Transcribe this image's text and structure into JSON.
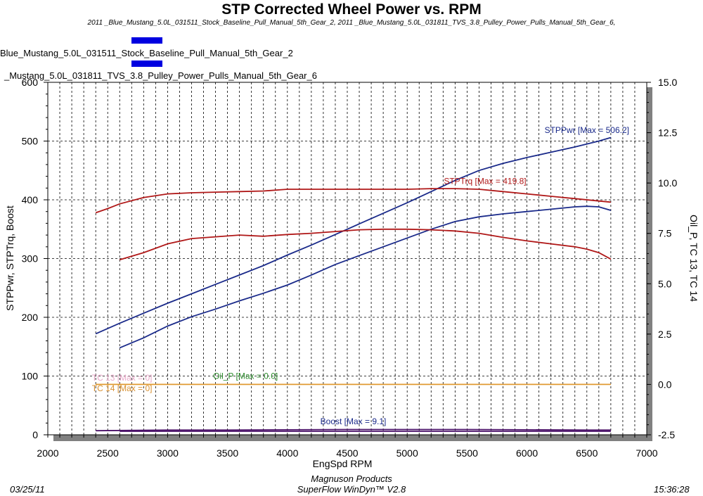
{
  "header": {
    "title": "STP Corrected Wheel Power vs. RPM",
    "subtitle": "2011 _Blue_Mustang_5.0L_031511_Stock_Baseline_Pull_Manual_5th_Gear_2, 2011 _Blue_Mustang_5.0L_031811_TVS_3.8_Pulley_Power_Pulls_Manual_5th_Gear_6,"
  },
  "legend": {
    "run1": "Blue_Mustang_5.0L_031511_Stock_Baseline_Pull_Manual_5th_Gear_2",
    "run2": "_Mustang_5.0L_031811_TVS_3.8_Pulley_Power_Pulls_Manual_5th_Gear_6",
    "swatch_color": "#0000e0"
  },
  "footer": {
    "date": "03/25/11",
    "company": "Magnuson Products",
    "software": "SuperFlow WinDyn™ V2.8",
    "time": "15:36:28"
  },
  "chart_data": {
    "type": "line",
    "title": "STP Corrected Wheel Power vs. RPM",
    "xlabel": "EngSpd  RPM",
    "ylabel": "STPPwr, STPTrq, Boost",
    "y2label": "Oil_P, TC 13, TC 14",
    "xlim": [
      2000,
      7000
    ],
    "ylim": [
      0,
      600
    ],
    "y2lim": [
      -2.5,
      15.0
    ],
    "x_ticks": [
      2000,
      2500,
      3000,
      3500,
      4000,
      4500,
      5000,
      5500,
      6000,
      6500,
      7000
    ],
    "y_ticks": [
      0,
      100,
      200,
      300,
      400,
      500,
      600
    ],
    "y2_ticks": [
      "-2.5",
      "0.0",
      "2.5",
      "5.0",
      "7.5",
      "10.0",
      "12.5",
      "15.0"
    ],
    "grid": true,
    "annotations": [
      {
        "text": "STPPwr [Max = 506.2]",
        "x": 6500,
        "y": 514,
        "color": "#1a2a8a"
      },
      {
        "text": "STPTrq [Max = 419.8]",
        "x": 5650,
        "y": 427,
        "color": "#b01818"
      },
      {
        "text": "TC 13  [Max = 0]",
        "x": 2620,
        "y": 92,
        "color": "#e8a8c8"
      },
      {
        "text": "Oil_P  [Max = 0.0]",
        "x": 3650,
        "y": 95,
        "color": "#2a8a2a"
      },
      {
        "text": "TC 14  [Max = 0]",
        "x": 2620,
        "y": 74,
        "color": "#d89030"
      },
      {
        "text": "Boost  [Max = 9.1]",
        "x": 4550,
        "y": 18,
        "color": "#1a2a8a"
      }
    ],
    "series": [
      {
        "label": "STPPwr (TVS 3.8 Pulley)",
        "color": "#1a2a8a",
        "axis": "left",
        "x": [
          2400,
          2600,
          2800,
          3000,
          3200,
          3400,
          3600,
          3800,
          4000,
          4200,
          4400,
          4600,
          4800,
          5000,
          5200,
          5400,
          5600,
          5800,
          6000,
          6200,
          6400,
          6600,
          6700
        ],
        "y": [
          172,
          190,
          207,
          224,
          240,
          256,
          272,
          288,
          306,
          323,
          341,
          359,
          377,
          395,
          414,
          433,
          450,
          462,
          472,
          481,
          490,
          500,
          506
        ]
      },
      {
        "label": "STPPwr (Stock Baseline)",
        "color": "#1a2a8a",
        "axis": "left",
        "x": [
          2600,
          2800,
          3000,
          3200,
          3400,
          3600,
          3800,
          4000,
          4200,
          4400,
          4600,
          4800,
          5000,
          5200,
          5400,
          5600,
          5800,
          6000,
          6200,
          6400,
          6500,
          6600,
          6700
        ],
        "y": [
          148,
          165,
          185,
          201,
          214,
          228,
          241,
          255,
          272,
          290,
          305,
          320,
          335,
          350,
          363,
          371,
          376,
          380,
          384,
          388,
          389,
          388,
          382
        ]
      },
      {
        "label": "STPTrq (TVS 3.8 Pulley)",
        "color": "#b01818",
        "axis": "left",
        "x": [
          2400,
          2500,
          2600,
          2800,
          3000,
          3200,
          3400,
          3600,
          3800,
          4000,
          4200,
          4400,
          4600,
          4800,
          5000,
          5200,
          5400,
          5600,
          5800,
          6000,
          6200,
          6400,
          6600,
          6700
        ],
        "y": [
          378,
          385,
          393,
          404,
          410,
          412,
          413,
          414,
          415,
          418,
          418,
          418,
          418,
          418,
          418,
          419,
          419,
          418,
          414,
          410,
          406,
          402,
          398,
          396
        ]
      },
      {
        "label": "STPTrq (Stock Baseline)",
        "color": "#b01818",
        "axis": "left",
        "x": [
          2600,
          2800,
          3000,
          3200,
          3400,
          3600,
          3800,
          4000,
          4200,
          4400,
          4600,
          4800,
          5000,
          5200,
          5400,
          5600,
          5800,
          6000,
          6200,
          6400,
          6500,
          6600,
          6700
        ],
        "y": [
          298,
          310,
          325,
          334,
          337,
          340,
          338,
          341,
          343,
          346,
          349,
          350,
          350,
          349,
          347,
          343,
          336,
          330,
          325,
          320,
          316,
          310,
          299
        ]
      },
      {
        "label": "TC 14",
        "color": "#e09a30",
        "axis": "right",
        "x": [
          2400,
          6700
        ],
        "y": [
          0.0,
          0.0
        ]
      },
      {
        "label": "Boost (TVS 3.8 Pulley)",
        "color": "#4a1068",
        "axis": "left",
        "x": [
          2400,
          3000,
          3500,
          4000,
          4500,
          5000,
          5500,
          6000,
          6500,
          6700
        ],
        "y": [
          7,
          8,
          8,
          8.5,
          9,
          9,
          9,
          8.5,
          8,
          8
        ]
      },
      {
        "label": "Boost (Stock Baseline)",
        "color": "#4a1068",
        "axis": "left",
        "x": [
          2600,
          3500,
          4500,
          5500,
          6500,
          6700
        ],
        "y": [
          6,
          6,
          6,
          6,
          6,
          6
        ]
      }
    ]
  }
}
